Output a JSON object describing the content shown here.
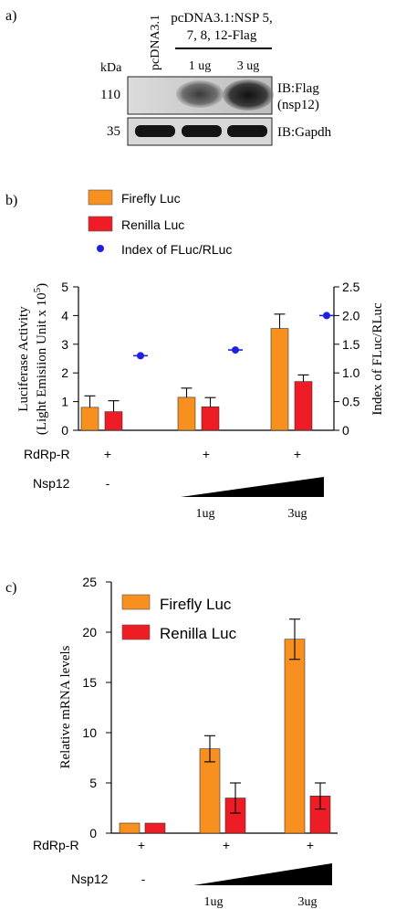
{
  "panel_a": {
    "label": "a)",
    "lane1_label": "pcDNA3.1",
    "group_label_line1": "pcDNA3.1:NSP 5,",
    "group_label_line2": "7, 8, 12-Flag",
    "dose1": "1 ug",
    "dose2": "3 ug",
    "kda_label": "kDa",
    "marker1": "110",
    "marker2": "35",
    "blot1_label_line1": "IB:Flag",
    "blot1_label_line2": "(nsp12)",
    "blot2_label": "IB:Gapdh"
  },
  "panel_b": {
    "label": "b)",
    "legend": [
      "Firefly Luc",
      "Renilla Luc",
      "Index of FLuc/RLuc"
    ],
    "ylabel_line1": "Luciferase Activity",
    "ylabel_line2": "(Light Emisiion Unit x 10",
    "ylabel_sup": "5",
    "ylabel_close": ")",
    "y2label": "Index of FLuc/RLuc",
    "yticks": [
      "0",
      "1",
      "2",
      "3",
      "4",
      "5"
    ],
    "y2ticks": [
      "0",
      "0.5",
      "1.0",
      "1.5",
      "2.0",
      "2.5"
    ],
    "row1_label": "RdRp-R",
    "row1_values": [
      "+",
      "+",
      "+"
    ],
    "row2_label": "Nsp12",
    "row2_first": "-",
    "doses": [
      "1ug",
      "3ug"
    ]
  },
  "panel_c": {
    "label": "c)",
    "legend": [
      "Firefly Luc",
      "Renilla Luc"
    ],
    "ylabel": "Relative mRNA levels",
    "yticks": [
      "0",
      "5",
      "10",
      "15",
      "20",
      "25"
    ],
    "row1_label": "RdRp-R",
    "row1_values": [
      "+",
      "+",
      "+"
    ],
    "row2_label": "Nsp12",
    "row2_first": "-",
    "doses": [
      "1ug",
      "3ug"
    ]
  },
  "colors": {
    "firefly": "#F7901E",
    "renilla": "#EE1C24",
    "index": "#1F1FE0"
  },
  "chart_data": [
    {
      "panel": "b",
      "type": "bar",
      "categories": [
        "-",
        "1ug",
        "3ug"
      ],
      "series": [
        {
          "name": "Firefly Luc",
          "values": [
            0.8,
            1.15,
            3.55
          ],
          "errors": [
            0.4,
            0.32,
            0.5
          ]
        },
        {
          "name": "Renilla Luc",
          "values": [
            0.65,
            0.82,
            1.7
          ],
          "errors": [
            0.38,
            0.32,
            0.23
          ]
        }
      ],
      "ylim": [
        0,
        5
      ],
      "index_series": {
        "name": "Index of FLuc/RLuc",
        "values": [
          1.3,
          1.4,
          2.0
        ],
        "errors": [
          0.04,
          0.04,
          0.04
        ],
        "ylim": [
          0,
          2.5
        ]
      }
    },
    {
      "panel": "c",
      "type": "bar",
      "categories": [
        "-",
        "1ug",
        "3ug"
      ],
      "series": [
        {
          "name": "Firefly Luc",
          "values": [
            1.0,
            8.4,
            19.3
          ],
          "errors": [
            0,
            1.3,
            2.0
          ]
        },
        {
          "name": "Renilla Luc",
          "values": [
            1.0,
            3.5,
            3.7
          ],
          "errors": [
            0,
            1.5,
            1.3
          ]
        }
      ],
      "ylim": [
        0,
        25
      ]
    }
  ]
}
